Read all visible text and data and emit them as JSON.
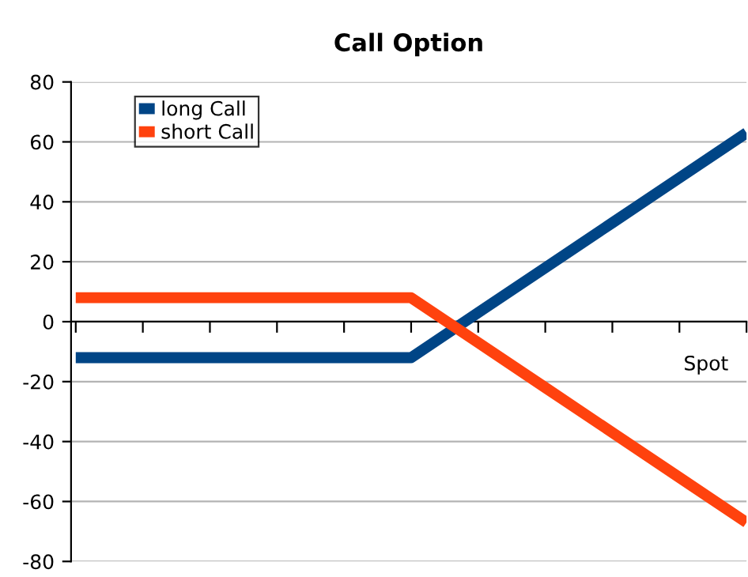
{
  "chart_data": {
    "type": "line",
    "title": "Call Option",
    "xlabel": "Spot",
    "categories": [
      null,
      null,
      null,
      null,
      null,
      null,
      null,
      null,
      null,
      null,
      null
    ],
    "series": [
      {
        "name": "long Call",
        "color": "#004586",
        "values": [
          -12,
          -12,
          -12,
          -12,
          -12,
          -12,
          3,
          18,
          33,
          48,
          63
        ]
      },
      {
        "name": "short Call",
        "color": "#ff420e",
        "values": [
          8,
          8,
          8,
          8,
          8,
          8,
          -7,
          -22,
          -37,
          -52,
          -67
        ]
      }
    ],
    "ylim": [
      -80,
      80
    ],
    "yticks": [
      -80,
      -60,
      -40,
      -20,
      0,
      20,
      40,
      60,
      80
    ],
    "grid": "y",
    "legend": "top left",
    "marker": "none",
    "line_style": "solid"
  }
}
